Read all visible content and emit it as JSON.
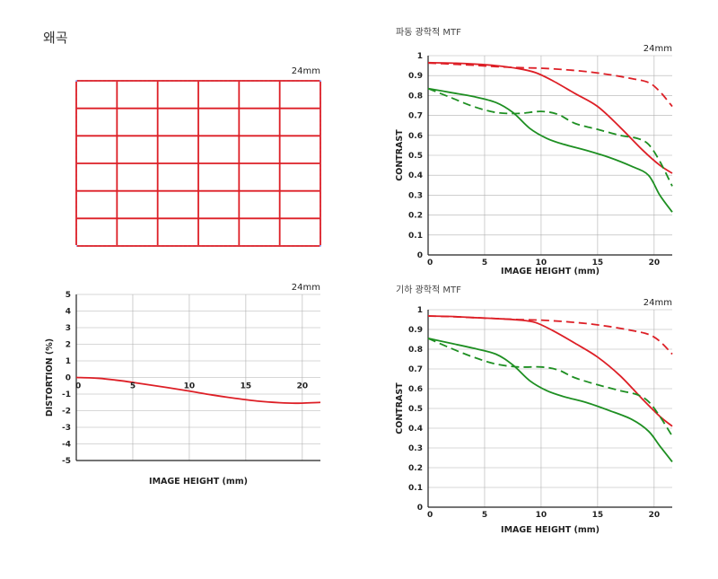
{
  "page": {
    "title": "왜곡"
  },
  "grid_panel": {
    "focal": "24mm"
  },
  "colors": {
    "red": "#dd1f26",
    "green": "#1e8f22",
    "grid": "#b0b0b0",
    "blue": "#6a6ad8"
  },
  "chart_data": [
    {
      "type": "line",
      "subtitle": "",
      "focal": "24mm",
      "xlabel": "IMAGE HEIGHT (mm)",
      "ylabel": "DISTORTION (%)",
      "xlim": [
        0,
        21.6
      ],
      "ylim": [
        -5,
        5
      ],
      "xticks": [
        0,
        5,
        10,
        15,
        20
      ],
      "yticks": [
        5,
        4,
        3,
        2,
        1,
        0,
        -1,
        -2,
        -3,
        -4,
        -5
      ],
      "series": [
        {
          "color": "red",
          "dash": false,
          "x": [
            0,
            2,
            4,
            6,
            8,
            10,
            12,
            14,
            16,
            18,
            19.5,
            21.6
          ],
          "y": [
            0,
            -0.05,
            -0.2,
            -0.4,
            -0.6,
            -0.82,
            -1.05,
            -1.25,
            -1.42,
            -1.52,
            -1.55,
            -1.5
          ]
        }
      ]
    },
    {
      "type": "line",
      "subtitle": "파동 광학적 MTF",
      "focal": "24mm",
      "xlabel": "IMAGE HEIGHT (mm)",
      "ylabel": "CONTRAST",
      "xlim": [
        0,
        21.6
      ],
      "ylim": [
        0,
        1
      ],
      "xticks": [
        0,
        5,
        10,
        15,
        20
      ],
      "yticks": [
        0,
        0.1,
        0.2,
        0.3,
        0.4,
        0.5,
        0.6,
        0.7,
        0.8,
        0.9,
        1
      ],
      "series": [
        {
          "color": "red",
          "dash": false,
          "x": [
            0,
            2,
            4,
            6,
            8,
            9.5,
            11,
            13,
            15,
            17,
            19,
            20.5,
            21.6
          ],
          "y": [
            0.965,
            0.963,
            0.958,
            0.95,
            0.935,
            0.915,
            0.875,
            0.81,
            0.745,
            0.64,
            0.525,
            0.45,
            0.41
          ]
        },
        {
          "color": "red",
          "dash": true,
          "x": [
            0,
            2,
            4,
            6,
            8,
            10,
            12,
            14,
            16,
            18,
            19.5,
            20.5,
            21.6
          ],
          "y": [
            0.963,
            0.958,
            0.952,
            0.945,
            0.94,
            0.937,
            0.93,
            0.92,
            0.905,
            0.885,
            0.865,
            0.82,
            0.745
          ]
        },
        {
          "color": "green",
          "dash": false,
          "x": [
            0,
            2,
            4,
            6,
            7.5,
            9,
            10.5,
            12,
            14,
            16,
            18,
            19.5,
            20.5,
            21.6
          ],
          "y": [
            0.835,
            0.815,
            0.795,
            0.765,
            0.715,
            0.635,
            0.585,
            0.555,
            0.525,
            0.49,
            0.445,
            0.4,
            0.3,
            0.215
          ]
        },
        {
          "color": "green",
          "dash": true,
          "x": [
            0,
            2,
            4,
            6,
            8,
            10,
            11.5,
            13,
            15,
            17,
            18.5,
            19.5,
            20.5,
            21.6
          ],
          "y": [
            0.835,
            0.79,
            0.745,
            0.715,
            0.71,
            0.72,
            0.705,
            0.66,
            0.63,
            0.6,
            0.585,
            0.555,
            0.47,
            0.345
          ]
        }
      ]
    },
    {
      "type": "line",
      "subtitle": "기하 광학적 MTF",
      "focal": "24mm",
      "xlabel": "IMAGE HEIGHT (mm)",
      "ylabel": "CONTRAST",
      "xlim": [
        0,
        21.6
      ],
      "ylim": [
        0,
        1
      ],
      "xticks": [
        0,
        5,
        10,
        15,
        20
      ],
      "yticks": [
        0,
        0.1,
        0.2,
        0.3,
        0.4,
        0.5,
        0.6,
        0.7,
        0.8,
        0.9,
        1
      ],
      "series": [
        {
          "color": "red",
          "dash": false,
          "x": [
            0,
            2,
            4,
            6,
            8,
            9.5,
            11,
            13,
            15,
            17,
            19,
            20.5,
            21.6
          ],
          "y": [
            0.968,
            0.966,
            0.96,
            0.955,
            0.948,
            0.935,
            0.895,
            0.83,
            0.76,
            0.665,
            0.545,
            0.46,
            0.41
          ]
        },
        {
          "color": "red",
          "dash": true,
          "x": [
            0,
            2,
            4,
            6,
            8,
            10,
            12,
            14,
            16,
            18,
            19.5,
            20.5,
            21.6
          ],
          "y": [
            0.968,
            0.965,
            0.96,
            0.955,
            0.95,
            0.947,
            0.94,
            0.93,
            0.915,
            0.895,
            0.875,
            0.84,
            0.775
          ]
        },
        {
          "color": "green",
          "dash": false,
          "x": [
            0,
            2,
            4,
            6,
            7.5,
            9,
            10.5,
            12,
            14,
            16,
            18,
            19.5,
            20.5,
            21.6
          ],
          "y": [
            0.855,
            0.83,
            0.805,
            0.775,
            0.72,
            0.64,
            0.59,
            0.56,
            0.53,
            0.49,
            0.445,
            0.385,
            0.31,
            0.23
          ]
        },
        {
          "color": "green",
          "dash": true,
          "x": [
            0,
            2,
            4,
            6,
            8,
            10,
            11.5,
            13,
            15,
            17,
            18.5,
            19.5,
            20.5,
            21.6
          ],
          "y": [
            0.855,
            0.805,
            0.76,
            0.725,
            0.71,
            0.71,
            0.695,
            0.655,
            0.62,
            0.59,
            0.57,
            0.535,
            0.46,
            0.36
          ]
        }
      ]
    }
  ]
}
